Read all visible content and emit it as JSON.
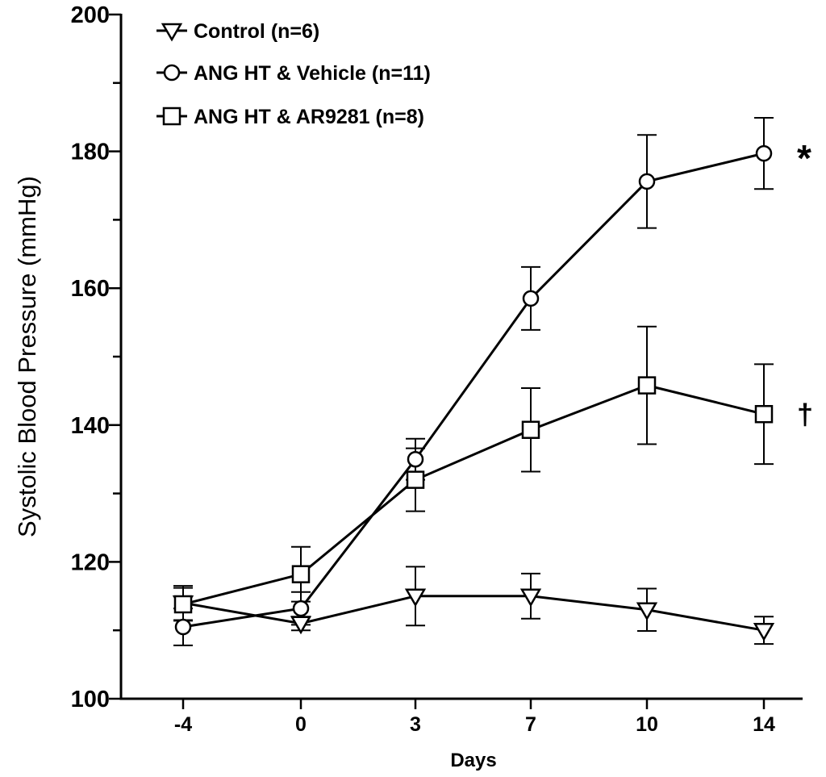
{
  "chart_data": {
    "type": "line",
    "title": "",
    "xlabel": "Days",
    "ylabel": "Systolic Blood Pressure (mmHg)",
    "categories": [
      "-4",
      "0",
      "3",
      "7",
      "10",
      "14"
    ],
    "ylim": [
      100,
      200
    ],
    "yticks": [
      "100",
      "120",
      "140",
      "160",
      "180",
      "200"
    ],
    "legend_position": "top-left",
    "grid": false,
    "series": [
      {
        "name": "Control (n=6)",
        "marker": "triangle-down",
        "values": [
          114,
          111,
          115,
          115,
          113,
          110
        ],
        "errors": [
          2.5,
          1.0,
          4.3,
          3.3,
          3.1,
          2.0
        ]
      },
      {
        "name": "ANG HT & Vehicle (n=11)",
        "marker": "circle",
        "values": [
          110.5,
          113.2,
          135,
          158.5,
          175.6,
          179.7
        ],
        "errors": [
          2.7,
          2.4,
          3.0,
          4.6,
          6.8,
          5.2
        ]
      },
      {
        "name": "ANG HT & AR9281 (n=8)",
        "marker": "square",
        "values": [
          113.8,
          118.2,
          132,
          139.3,
          145.8,
          141.6
        ],
        "errors": [
          2.4,
          4.0,
          4.6,
          6.1,
          8.6,
          7.3
        ]
      }
    ],
    "annotations": [
      {
        "text": "*",
        "series": "ANG HT & Vehicle (n=11)"
      },
      {
        "text": "†",
        "series": "ANG HT & AR9281 (n=8)"
      }
    ]
  }
}
